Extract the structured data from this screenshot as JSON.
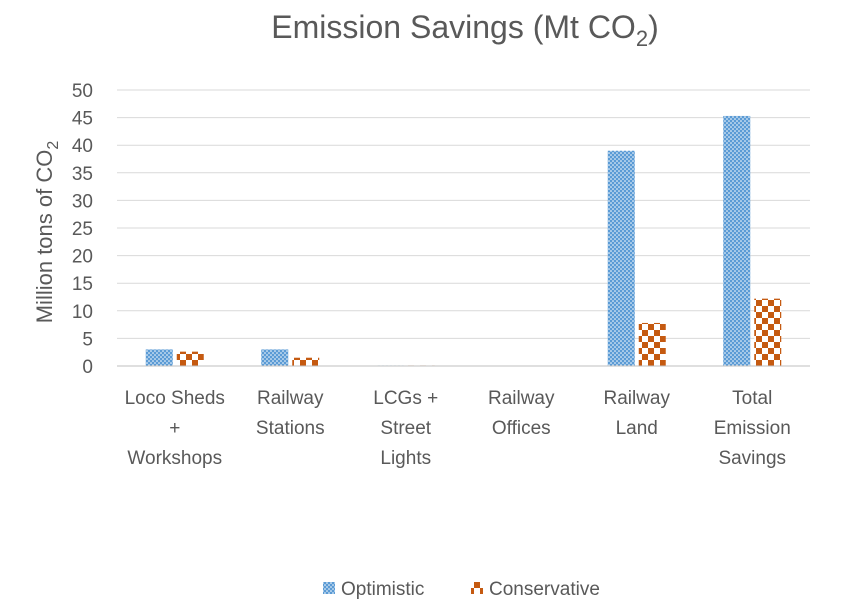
{
  "chart_data": {
    "type": "bar",
    "title_main": "Emission Savings (Mt CO",
    "title_sub": "2",
    "title_end": ")",
    "ylabel_main": "Million tons of CO",
    "ylabel_sub": "2",
    "xlabel": "",
    "ylim": [
      0,
      50
    ],
    "yticks": [
      0,
      5,
      10,
      15,
      20,
      25,
      30,
      35,
      40,
      45,
      50
    ],
    "categories": [
      [
        "Loco Sheds",
        "+",
        "Workshops"
      ],
      [
        "Railway",
        "Stations"
      ],
      [
        "LCGs +",
        "Street",
        "Lights"
      ],
      [
        "Railway",
        "Offices"
      ],
      [
        "Railway",
        "Land"
      ],
      [
        "Total",
        "Emission",
        "Savings"
      ]
    ],
    "series": [
      {
        "name": "Optimistic",
        "values": [
          3,
          3,
          0.1,
          0,
          39,
          45.3
        ],
        "color": "#5B9BD5"
      },
      {
        "name": "Conservative",
        "values": [
          2.6,
          1.5,
          0.1,
          0,
          7.8,
          12.2
        ],
        "color": "#C55A11"
      }
    ],
    "grid": true,
    "legend_position": "bottom"
  }
}
